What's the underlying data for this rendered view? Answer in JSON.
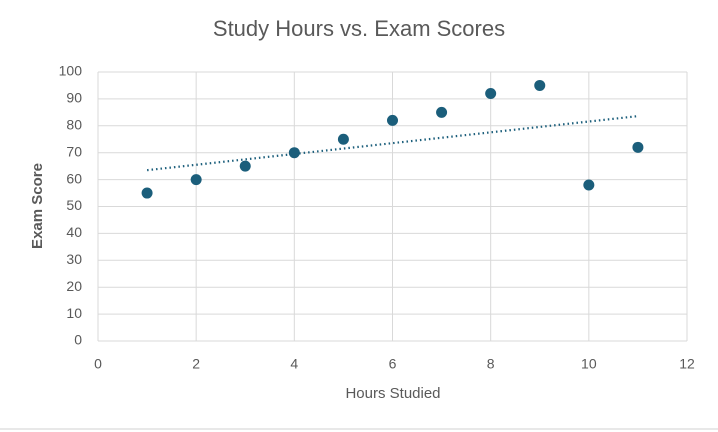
{
  "chart_data": {
    "type": "scatter",
    "title": "Study Hours vs. Exam Scores",
    "x_label": "Hours Studied",
    "y_label": "Exam Score",
    "x": [
      1,
      2,
      3,
      4,
      5,
      6,
      7,
      8,
      9,
      10,
      11
    ],
    "values": [
      55,
      60,
      65,
      70,
      75,
      82,
      85,
      92,
      95,
      58,
      72
    ],
    "color": "#1b5e7b",
    "trendline": {
      "x": [
        1,
        11
      ],
      "values": [
        63.5,
        83.6
      ],
      "color": "#1b5e7b"
    },
    "xlim": [
      0,
      12
    ],
    "xticks": [
      0,
      2,
      4,
      6,
      8,
      10,
      12
    ],
    "ylim": [
      0,
      100
    ],
    "yticks": [
      0,
      10,
      20,
      30,
      40,
      50,
      60,
      70,
      80,
      90,
      100
    ],
    "grid": true
  }
}
